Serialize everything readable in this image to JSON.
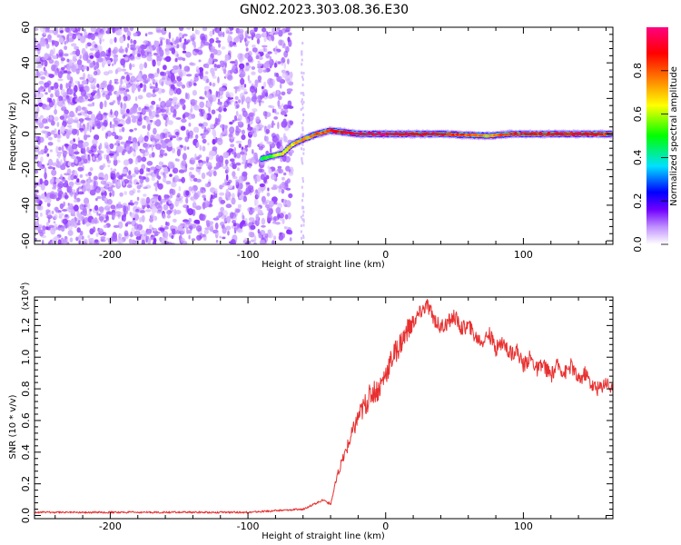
{
  "title": "GN02.2023.303.08.36.E30",
  "colors": {
    "snr_line": "#e83030",
    "ridge_core": "#ff3030",
    "noise": "#8a30ff",
    "frame": "#000000"
  },
  "chart_data": [
    {
      "type": "heatmap",
      "xlabel": "Height of straight line (km)",
      "ylabel": "Frequency (Hz)",
      "xlim": [
        -255,
        165
      ],
      "ylim": [
        -62,
        60
      ],
      "x_ticks": [
        -200,
        -100,
        0,
        100
      ],
      "y_ticks": [
        -60,
        -40,
        -20,
        0,
        20,
        40,
        60
      ],
      "noise_region_x": [
        -255,
        -75
      ],
      "ridge": [
        {
          "x": -90,
          "y": -14,
          "a": 0.5
        },
        {
          "x": -80,
          "y": -12,
          "a": 0.6
        },
        {
          "x": -75,
          "y": -11,
          "a": 0.65
        },
        {
          "x": -68,
          "y": -6,
          "a": 0.7
        },
        {
          "x": -60,
          "y": -3,
          "a": 0.75
        },
        {
          "x": -50,
          "y": 0,
          "a": 0.8
        },
        {
          "x": -40,
          "y": 2,
          "a": 0.85
        },
        {
          "x": -30,
          "y": 1,
          "a": 0.9
        },
        {
          "x": -20,
          "y": 0,
          "a": 0.95
        },
        {
          "x": 0,
          "y": 0,
          "a": 0.95
        },
        {
          "x": 40,
          "y": 0,
          "a": 0.9
        },
        {
          "x": 75,
          "y": -1,
          "a": 0.75
        },
        {
          "x": 90,
          "y": 0,
          "a": 0.85
        },
        {
          "x": 140,
          "y": 0,
          "a": 0.9
        },
        {
          "x": 165,
          "y": 0,
          "a": 0.85
        }
      ]
    },
    {
      "type": "colorbar",
      "label": "Normalized spectral amplitude",
      "range": [
        0,
        1
      ],
      "ticks": [
        0.0,
        0.2,
        0.4,
        0.6,
        0.8
      ],
      "tick_labels": [
        "0.0",
        "0.2",
        "0.4",
        "0.6",
        "0.8"
      ],
      "colors": [
        "#ffffff",
        "#c090ff",
        "#7000ff",
        "#0000ff",
        "#00e0ff",
        "#00ff00",
        "#ffff00",
        "#ff8000",
        "#ff0000",
        "#ff0080"
      ]
    },
    {
      "type": "line",
      "xlabel": "Height of straight line (km)",
      "ylabel": "SNR (10 * v/v)",
      "scale_label": "(x10",
      "scale_exp": "4",
      "scale_close": ")",
      "xlim": [
        -255,
        165
      ],
      "ylim": [
        -0.02,
        1.38
      ],
      "x_ticks": [
        -200,
        -100,
        0,
        100
      ],
      "y_ticks": [
        0.0,
        0.2,
        0.4,
        0.6,
        0.8,
        1.0,
        1.2
      ],
      "y_tick_labels": [
        "0.0",
        "0.2",
        "0.4",
        "0.6",
        "0.8",
        "1.0",
        "1.2"
      ],
      "series": [
        {
          "x": [
            -255,
            -200,
            -150,
            -100,
            -80,
            -60,
            -55,
            -50,
            -45,
            -40,
            -35,
            -30,
            -25,
            -20,
            -15,
            -10,
            -5,
            0,
            5,
            10,
            15,
            20,
            25,
            30,
            35,
            40,
            45,
            50,
            55,
            60,
            65,
            70,
            75,
            80,
            85,
            90,
            95,
            100,
            105,
            110,
            115,
            120,
            125,
            130,
            135,
            140,
            145,
            150,
            155,
            160,
            165
          ],
          "y": [
            0.02,
            0.02,
            0.02,
            0.02,
            0.03,
            0.04,
            0.06,
            0.08,
            0.1,
            0.07,
            0.25,
            0.38,
            0.5,
            0.62,
            0.7,
            0.78,
            0.8,
            0.9,
            1.0,
            1.08,
            1.15,
            1.22,
            1.28,
            1.33,
            1.25,
            1.18,
            1.22,
            1.26,
            1.18,
            1.2,
            1.13,
            1.1,
            1.15,
            1.05,
            1.1,
            1.02,
            1.05,
            0.95,
            1.0,
            0.92,
            0.95,
            0.88,
            0.95,
            0.9,
            0.95,
            0.85,
            0.9,
            0.82,
            0.8,
            0.85,
            0.78
          ]
        }
      ]
    }
  ]
}
